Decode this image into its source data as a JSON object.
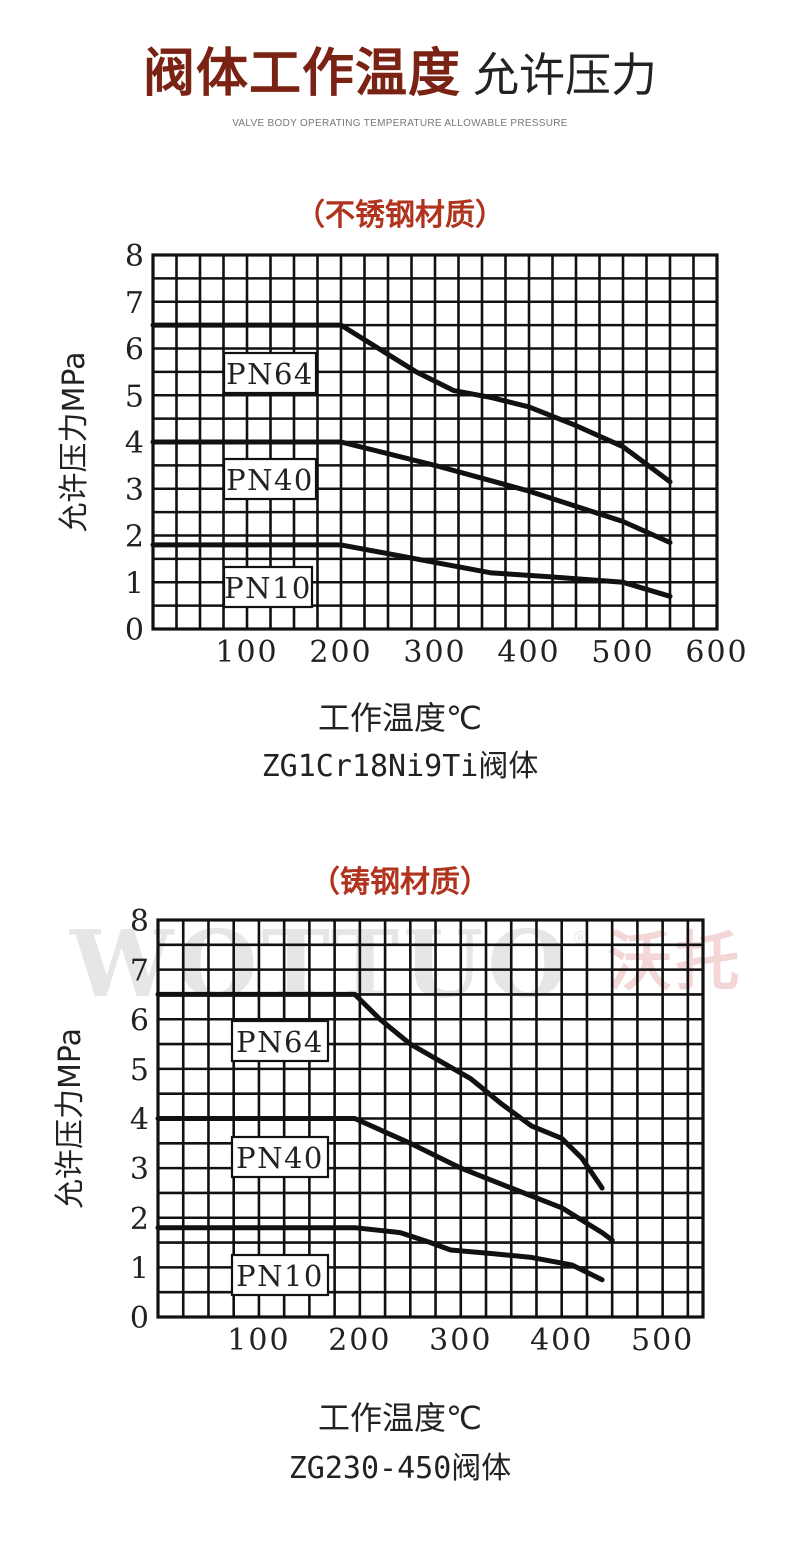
{
  "header": {
    "title_main": "阀体工作温度",
    "title_sub": "允许压力",
    "subtitle": "VALVE BODY OPERATING TEMPERATURE ALLOWABLE PRESSURE"
  },
  "watermark": {
    "latin": "WOTTUO",
    "reg": "®",
    "cn": "沃托"
  },
  "colors": {
    "title": "#7a2213",
    "material": "#b0341d",
    "grid": "#111111",
    "curve": "#111111"
  },
  "chart_data": [
    {
      "type": "line",
      "material_label": "（不锈钢材质）",
      "ylabel": "允许压力MPa",
      "xlabel": "工作温度℃",
      "caption": "ZG1Cr18Ni9Ti阀体",
      "xlim": [
        0,
        600
      ],
      "ylim": [
        0,
        8
      ],
      "x_ticks": [
        100,
        200,
        300,
        400,
        500,
        600
      ],
      "y_ticks": [
        0,
        1,
        2,
        3,
        4,
        5,
        6,
        7,
        8
      ],
      "grid": true,
      "series": [
        {
          "name": "PN64",
          "points": [
            [
              0,
              6.5
            ],
            [
              200,
              6.5
            ],
            [
              240,
              6.0
            ],
            [
              280,
              5.5
            ],
            [
              320,
              5.1
            ],
            [
              360,
              4.95
            ],
            [
              400,
              4.75
            ],
            [
              450,
              4.35
            ],
            [
              500,
              3.9
            ],
            [
              550,
              3.15
            ]
          ]
        },
        {
          "name": "PN40",
          "points": [
            [
              0,
              4.0
            ],
            [
              200,
              4.0
            ],
            [
              300,
              3.5
            ],
            [
              400,
              2.95
            ],
            [
              500,
              2.3
            ],
            [
              550,
              1.85
            ]
          ]
        },
        {
          "name": "PN10",
          "points": [
            [
              0,
              1.8
            ],
            [
              200,
              1.8
            ],
            [
              280,
              1.5
            ],
            [
              360,
              1.2
            ],
            [
              420,
              1.12
            ],
            [
              500,
              1.0
            ],
            [
              550,
              0.7
            ]
          ]
        }
      ]
    },
    {
      "type": "line",
      "material_label": "（铸钢材质）",
      "ylabel": "允许压力MPa",
      "xlabel": "工作温度℃",
      "caption": "ZG230-450阀体",
      "xlim": [
        0,
        540
      ],
      "ylim": [
        0,
        8
      ],
      "x_ticks": [
        100,
        200,
        300,
        400,
        500
      ],
      "y_ticks": [
        0,
        1,
        2,
        3,
        4,
        5,
        6,
        7,
        8
      ],
      "grid": true,
      "series": [
        {
          "name": "PN64",
          "points": [
            [
              0,
              6.5
            ],
            [
              195,
              6.5
            ],
            [
              220,
              6.0
            ],
            [
              250,
              5.5
            ],
            [
              280,
              5.15
            ],
            [
              310,
              4.8
            ],
            [
              340,
              4.3
            ],
            [
              370,
              3.85
            ],
            [
              400,
              3.6
            ],
            [
              420,
              3.2
            ],
            [
              440,
              2.6
            ]
          ]
        },
        {
          "name": "PN40",
          "points": [
            [
              0,
              4.0
            ],
            [
              195,
              4.0
            ],
            [
              250,
              3.5
            ],
            [
              300,
              3.0
            ],
            [
              350,
              2.6
            ],
            [
              400,
              2.2
            ],
            [
              440,
              1.7
            ],
            [
              450,
              1.55
            ]
          ]
        },
        {
          "name": "PN10",
          "points": [
            [
              0,
              1.8
            ],
            [
              195,
              1.8
            ],
            [
              240,
              1.7
            ],
            [
              270,
              1.5
            ],
            [
              290,
              1.35
            ],
            [
              330,
              1.28
            ],
            [
              370,
              1.2
            ],
            [
              410,
              1.05
            ],
            [
              440,
              0.75
            ]
          ]
        }
      ]
    }
  ]
}
